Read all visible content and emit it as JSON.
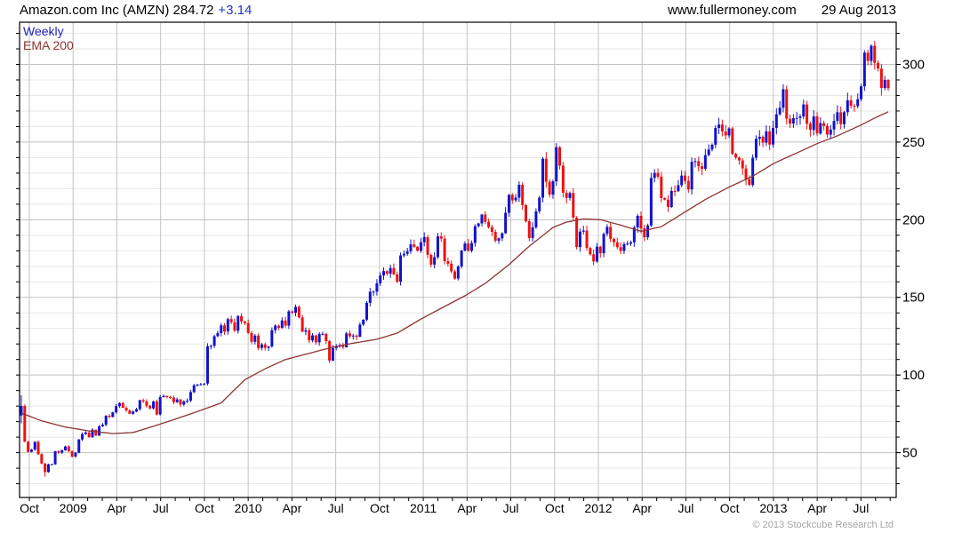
{
  "header": {
    "title": "Amazon.com Inc (AMZN) 284.72",
    "change": "+3.14",
    "website": "www.fullermoney.com",
    "date": "29 Aug 2013"
  },
  "legend": {
    "timeframe": "Weekly",
    "indicator": "EMA 200"
  },
  "footer": {
    "copyright": "© 2013 Stockcube Research Ltd"
  },
  "colors": {
    "up": "#1212cc",
    "down": "#ee1111",
    "ema": "#8e3333",
    "legend_blue": "#2222bb",
    "change_blue": "#2233cc",
    "grid_minor": "#e7e7e7",
    "grid_major": "#c2c2c2",
    "border": "#000000",
    "text": "#000000",
    "copyright": "#a3a3a3"
  },
  "chart_data": {
    "type": "candlestick+line",
    "symbol": "AMZN",
    "name": "Amazon.com Inc",
    "period": "weekly",
    "last_price": 284.72,
    "change": 3.14,
    "date": "29 Aug 2013",
    "x_labels": [
      "Oct",
      "2009",
      "Apr",
      "Jul",
      "Oct",
      "2010",
      "Apr",
      "Jul",
      "Oct",
      "2011",
      "Apr",
      "Jul",
      "Oct",
      "2012",
      "Apr",
      "Jul",
      "Oct",
      "2013",
      "Apr",
      "Jul"
    ],
    "y_ticks": [
      50,
      100,
      150,
      200,
      250,
      300
    ],
    "y_minor_step": 10,
    "axis_range": [
      21,
      327
    ],
    "grid": true,
    "legend_position": "top-left",
    "first_open": 74,
    "weekly_closes": [
      80,
      57,
      50.5,
      52,
      57,
      49,
      43,
      37.5,
      42.5,
      42.5,
      51,
      50,
      51.5,
      54,
      51,
      47.5,
      50,
      58.5,
      62,
      63,
      60,
      64.8,
      61,
      67,
      68,
      73.8,
      73,
      76,
      80,
      82,
      78.9,
      77.2,
      75,
      76.5,
      78,
      83.8,
      83,
      80.2,
      78.5,
      83,
      74.6,
      85.8,
      86.5,
      85.8,
      85.5,
      82.5,
      84.3,
      81,
      83,
      83.5,
      89,
      93.4,
      93.7,
      94,
      94.5,
      118.5,
      118.8,
      125,
      127,
      132,
      128,
      136,
      134,
      128.5,
      138,
      134.5,
      133.4,
      127.1,
      121.4,
      125.4,
      117.4,
      119.7,
      117.5,
      118.4,
      128.9,
      131.8,
      130.4,
      135.1,
      131.8,
      141,
      140.1,
      143.9,
      137.1,
      127.9,
      128.8,
      122.3,
      125.5,
      121,
      126.5,
      126.5,
      121.8,
      109.3,
      117.3,
      118.5,
      118.9,
      117.9,
      126.8,
      124.9,
      125.4,
      124.6,
      132.5,
      135.6,
      146.5,
      153.6,
      153.7,
      159.1,
      164.1,
      166.9,
      165.2,
      168.9,
      164.8,
      160.1,
      177,
      178,
      179.7,
      184.1,
      182.6,
      180,
      185.5,
      188.8,
      177.4,
      171.1,
      175.9,
      189.3,
      187.8,
      173.3,
      171.7,
      166.7,
      162.1,
      169.9,
      180.1,
      184.7,
      180,
      185,
      195.8,
      197.6,
      203.3,
      198.6,
      195.2,
      192.2,
      186.5,
      188,
      191.3,
      204.5,
      216,
      212.5,
      214.2,
      222.5,
      209.4,
      199,
      188.2,
      195.1,
      205.4,
      214.2,
      239.3,
      224.5,
      216.2,
      224.7,
      246.7,
      234.8,
      217.3,
      214,
      217.2,
      201.3,
      182.4,
      192.3,
      193,
      181.8,
      177.7,
      173.1,
      182.6,
      178.4,
      190.9,
      195.4,
      187.7,
      185.5,
      182.3,
      179.9,
      184.3,
      184.6,
      185.5,
      195,
      202.5,
      194.4,
      188.7,
      196.3,
      226.9,
      230.2,
      227.7,
      213.9,
      212.9,
      208.2,
      218.5,
      218.4,
      222.2,
      228.4,
      225,
      219.5,
      237.3,
      237.7,
      234.4,
      232.8,
      241.6,
      245.2,
      248.3,
      259.1,
      261.3,
      256.8,
      254.3,
      258.8,
      242.4,
      240,
      238.2,
      233,
      226.2,
      222.4,
      239.9,
      252.1,
      253.4,
      249.6,
      256.9,
      248.4,
      259.1,
      267.9,
      272.1,
      284,
      265,
      261.9,
      265.4,
      265.6,
      266.5,
      274.2,
      261.8,
      257.8,
      266.5,
      255.5,
      262.2,
      260.4,
      254.8,
      258.1,
      263.6,
      269.2,
      261.5,
      269.2,
      276.9,
      273.3,
      273.1,
      277.6,
      285.9,
      307.6,
      302.2,
      312,
      301,
      297.3,
      284.8,
      290,
      284.7
    ],
    "wick_overrides": {
      "0": {
        "high": 87,
        "low": 69
      },
      "7": {
        "low": 34.5
      }
    },
    "ema_label": "EMA 200",
    "ema_points": [
      [
        0,
        75.5
      ],
      [
        6,
        70.5
      ],
      [
        13,
        66.5
      ],
      [
        20,
        64
      ],
      [
        27,
        62.3
      ],
      [
        33,
        63
      ],
      [
        39,
        67
      ],
      [
        46,
        72
      ],
      [
        52,
        76.5
      ],
      [
        59,
        82
      ],
      [
        66,
        97
      ],
      [
        72,
        104
      ],
      [
        78,
        110
      ],
      [
        85,
        114
      ],
      [
        92,
        118
      ],
      [
        98,
        120.5
      ],
      [
        105,
        123
      ],
      [
        111,
        127
      ],
      [
        118,
        136
      ],
      [
        124,
        143
      ],
      [
        131,
        151
      ],
      [
        137,
        159
      ],
      [
        144,
        171
      ],
      [
        150,
        183
      ],
      [
        157,
        195
      ],
      [
        161,
        198.5
      ],
      [
        166,
        200.5
      ],
      [
        171,
        200
      ],
      [
        177,
        196.5
      ],
      [
        183,
        192.5
      ],
      [
        189,
        195.5
      ],
      [
        196,
        205
      ],
      [
        202,
        213
      ],
      [
        209,
        221
      ],
      [
        216,
        228
      ],
      [
        222,
        236
      ],
      [
        229,
        243
      ],
      [
        235,
        249
      ],
      [
        241,
        254
      ],
      [
        248,
        261
      ],
      [
        252,
        265.5
      ],
      [
        256,
        269.5
      ]
    ]
  }
}
